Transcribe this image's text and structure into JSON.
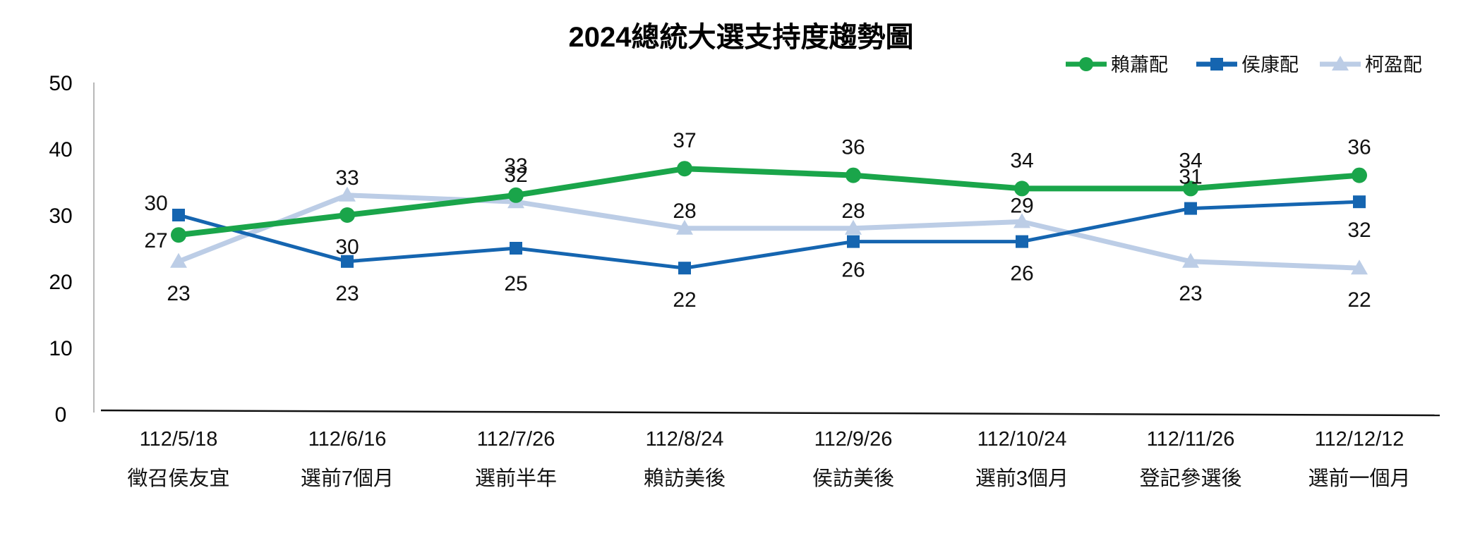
{
  "chart_data": {
    "type": "line",
    "title": "2024總統大選支持度趨勢圖",
    "xlabel": "",
    "ylabel": "",
    "ylim": [
      0,
      50
    ],
    "yticks": [
      0,
      10,
      20,
      30,
      40,
      50
    ],
    "grid": false,
    "legend_position": "top-right",
    "categories": [
      {
        "date": "112/5/18",
        "event": "徵召侯友宜"
      },
      {
        "date": "112/6/16",
        "event": "選前7個月"
      },
      {
        "date": "112/7/26",
        "event": "選前半年"
      },
      {
        "date": "112/8/24",
        "event": "賴訪美後"
      },
      {
        "date": "112/9/26",
        "event": "侯訪美後"
      },
      {
        "date": "112/10/24",
        "event": "選前3個月"
      },
      {
        "date": "112/11/26",
        "event": "登記參選後"
      },
      {
        "date": "112/12/12",
        "event": "選前一個月"
      }
    ],
    "series": [
      {
        "name": "賴蕭配",
        "color": "#1aa54a",
        "marker": "circle",
        "values": [
          27,
          30,
          33,
          37,
          36,
          34,
          34,
          36
        ]
      },
      {
        "name": "侯康配",
        "color": "#1565b0",
        "marker": "square",
        "values": [
          30,
          23,
          25,
          22,
          26,
          26,
          31,
          32
        ]
      },
      {
        "name": "柯盈配",
        "color": "#bccde6",
        "marker": "triangle",
        "values": [
          23,
          33,
          32,
          28,
          28,
          29,
          23,
          22
        ]
      }
    ]
  }
}
